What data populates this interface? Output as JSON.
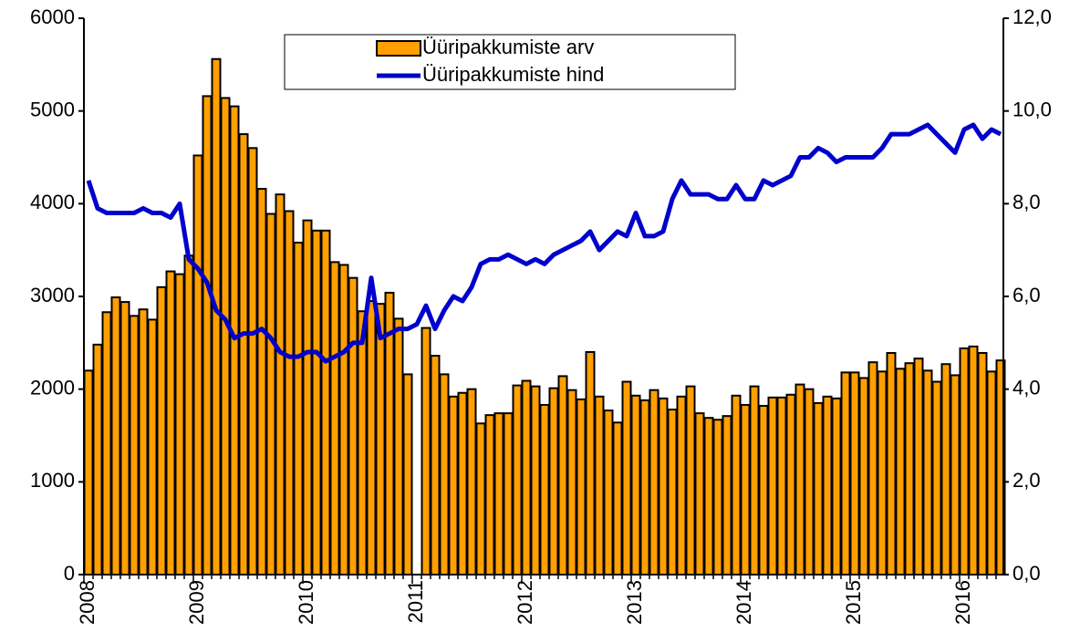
{
  "chart_data": {
    "type": "bar",
    "categories": [
      "2008",
      null,
      null,
      null,
      null,
      null,
      null,
      null,
      null,
      null,
      null,
      null,
      "2009",
      null,
      null,
      null,
      null,
      null,
      null,
      null,
      null,
      null,
      null,
      null,
      "2010",
      null,
      null,
      null,
      null,
      null,
      null,
      null,
      null,
      null,
      null,
      null,
      "2011",
      null,
      null,
      null,
      null,
      null,
      null,
      null,
      null,
      null,
      null,
      null,
      "2012",
      null,
      null,
      null,
      null,
      null,
      null,
      null,
      null,
      null,
      null,
      null,
      "2013",
      null,
      null,
      null,
      null,
      null,
      null,
      null,
      null,
      null,
      null,
      null,
      "2014",
      null,
      null,
      null,
      null,
      null,
      null,
      null,
      null,
      null,
      null,
      null,
      "2015",
      null,
      null,
      null,
      null,
      null,
      null,
      null,
      null,
      null,
      null,
      null,
      "2016",
      null,
      null,
      null,
      null
    ],
    "series": [
      {
        "name": "Üüripakkumiste arv",
        "type": "bar",
        "color": "#ff9f00",
        "values": [
          2200,
          2480,
          2830,
          2990,
          2940,
          2790,
          2860,
          2750,
          3100,
          3270,
          3240,
          3440,
          4520,
          5160,
          5560,
          5140,
          5050,
          4750,
          4600,
          4160,
          3890,
          4100,
          3920,
          3580,
          3820,
          3710,
          3710,
          3370,
          3340,
          3200,
          2840,
          2950,
          2920,
          3040,
          2760,
          2160,
          null,
          2660,
          2360,
          2160,
          1920,
          1960,
          2000,
          1630,
          1720,
          1740,
          1740,
          2040,
          2090,
          2030,
          1830,
          2010,
          2140,
          1990,
          1890,
          2400,
          1920,
          1770,
          1640,
          2080,
          1930,
          1880,
          1990,
          1900,
          1780,
          1920,
          2030,
          1740,
          1690,
          1670,
          1710,
          1930,
          1830,
          2030,
          1820,
          1910,
          1910,
          1940,
          2050,
          2000,
          1850,
          1920,
          1900,
          2180,
          2180,
          2120,
          2290,
          2190,
          2390,
          2220,
          2280,
          2330,
          2200,
          2080,
          2270,
          2150,
          2440,
          2460,
          2390,
          2190,
          2310
        ]
      },
      {
        "name": "Üüripakkumiste hind",
        "type": "line",
        "axis": "y2",
        "color": "#0000cc",
        "values": [
          8.5,
          7.9,
          7.8,
          7.8,
          7.8,
          7.8,
          7.9,
          7.8,
          7.8,
          7.7,
          8.0,
          6.8,
          6.6,
          6.3,
          5.7,
          5.5,
          5.1,
          5.2,
          5.2,
          5.3,
          5.1,
          4.8,
          4.7,
          4.7,
          4.8,
          4.8,
          4.6,
          4.7,
          4.8,
          5.0,
          5.0,
          6.4,
          5.1,
          5.2,
          5.3,
          5.3,
          5.4,
          5.8,
          5.3,
          5.7,
          6.0,
          5.9,
          6.2,
          6.7,
          6.8,
          6.8,
          6.9,
          6.8,
          6.7,
          6.8,
          6.7,
          6.9,
          7.0,
          7.1,
          7.2,
          7.4,
          7.0,
          7.2,
          7.4,
          7.3,
          7.8,
          7.3,
          7.3,
          7.4,
          8.1,
          8.5,
          8.2,
          8.2,
          8.2,
          8.1,
          8.1,
          8.4,
          8.1,
          8.1,
          8.5,
          8.4,
          8.5,
          8.6,
          9.0,
          9.0,
          9.2,
          9.1,
          8.9,
          9.0,
          9.0,
          9.0,
          9.0,
          9.2,
          9.5,
          9.5,
          9.5,
          9.6,
          9.7,
          9.5,
          9.3,
          9.1,
          9.6,
          9.7,
          9.4,
          9.6,
          9.5
        ]
      }
    ],
    "ylim": [
      0,
      6000
    ],
    "yticks": [
      0,
      1000,
      2000,
      3000,
      4000,
      5000,
      6000
    ],
    "y2lim": [
      0,
      12
    ],
    "y2ticks": [
      {
        "value": 0,
        "label": "0,0"
      },
      {
        "value": 2,
        "label": "2,0"
      },
      {
        "value": 4,
        "label": "4,0"
      },
      {
        "value": 6,
        "label": "6,0"
      },
      {
        "value": 8,
        "label": "8,0"
      },
      {
        "value": 10,
        "label": "10,0"
      },
      {
        "value": 12,
        "label": "12,0"
      }
    ],
    "grid": false,
    "legend": "top"
  }
}
